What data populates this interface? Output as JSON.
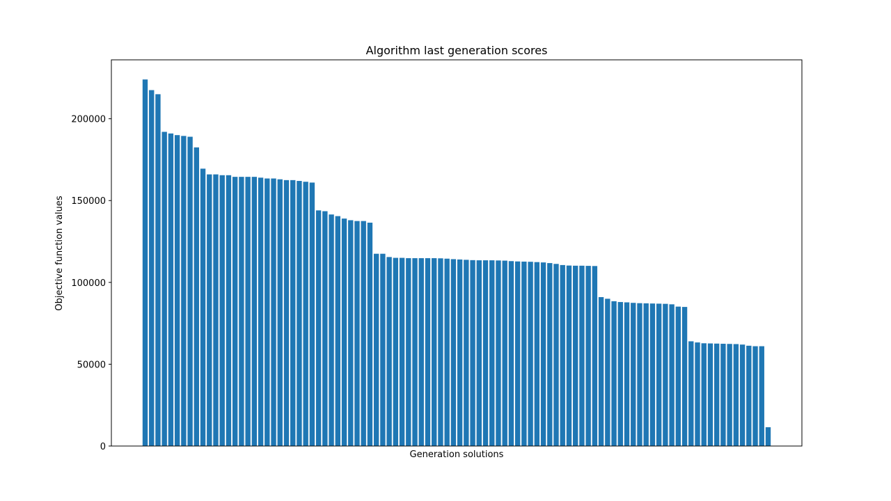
{
  "chart_data": {
    "type": "bar",
    "title": "Algorithm last generation scores",
    "xlabel": "Generation solutions",
    "ylabel": "Objective function values",
    "ylim": [
      0,
      236000
    ],
    "yticks": [
      0,
      50000,
      100000,
      150000,
      200000
    ],
    "ytick_labels": [
      "0",
      "50000",
      "100000",
      "150000",
      "200000"
    ],
    "grid": false,
    "bar_color": "#1f77b4",
    "values": [
      224000,
      217500,
      215000,
      192000,
      191000,
      190000,
      189500,
      189000,
      182500,
      169500,
      166000,
      166000,
      165500,
      165500,
      164500,
      164500,
      164500,
      164500,
      164000,
      163500,
      163500,
      163000,
      162500,
      162500,
      162000,
      161500,
      161000,
      144000,
      143500,
      141500,
      140500,
      139000,
      138000,
      137500,
      137500,
      136500,
      117500,
      117500,
      115500,
      115000,
      115000,
      114800,
      114800,
      114800,
      114800,
      114800,
      114700,
      114500,
      114200,
      114000,
      113800,
      113600,
      113500,
      113500,
      113500,
      113400,
      113300,
      113000,
      112800,
      112700,
      112600,
      112400,
      112200,
      111800,
      111300,
      110600,
      110300,
      110200,
      110200,
      110100,
      110000,
      91000,
      90000,
      88500,
      88000,
      87800,
      87500,
      87300,
      87200,
      87100,
      87000,
      86900,
      86600,
      85200,
      85000,
      64000,
      63300,
      62800,
      62700,
      62600,
      62500,
      62400,
      62300,
      62000,
      61300,
      61000,
      61000,
      11500
    ]
  }
}
